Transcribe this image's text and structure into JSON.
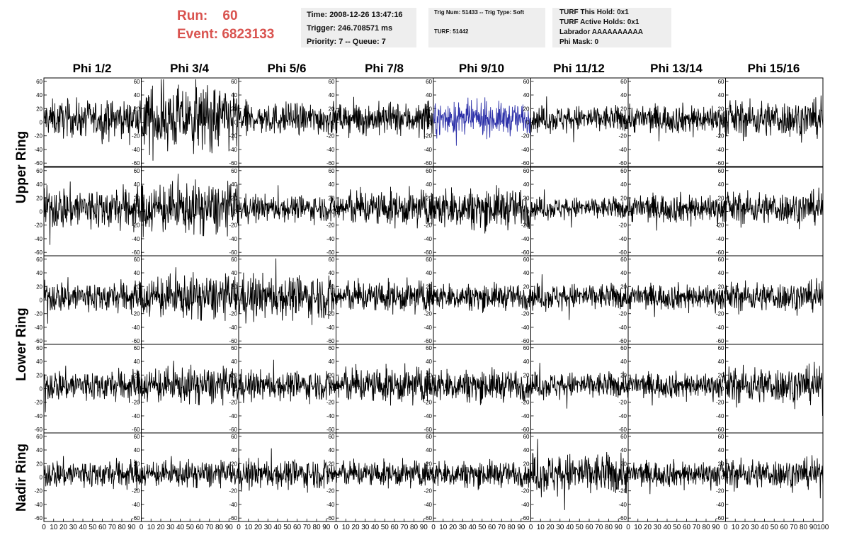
{
  "header": {
    "run_label": "Run:",
    "run_value": "60",
    "event_label": "Event:",
    "event_value": "6823133"
  },
  "info_time": {
    "line1": "Time: 2008-12-26 13:47:16",
    "line2": "Trigger: 246.708571 ms",
    "line3": "Priority: 7 -- Queue: 7"
  },
  "info_trig": {
    "line1": "Trig Num: 51433 -- Trig Type: Soft",
    "line2": "TURF: 51442"
  },
  "info_turf": {
    "line1": "TURF This Hold: 0x1",
    "line2": "TURF Active Holds: 0x1",
    "line3": "Labrador AAAAAAAAAA",
    "line4": "Phi Mask: 0"
  },
  "colors": {
    "trace": "#000000",
    "highlight": "#2b2fa8",
    "header_red": "#d9534f"
  },
  "chart_data": {
    "type": "line",
    "columns": [
      "Phi 1/2",
      "Phi 3/4",
      "Phi 5/6",
      "Phi 7/8",
      "Phi 9/10",
      "Phi 11/12",
      "Phi 13/14",
      "Phi 15/16"
    ],
    "rows": [
      "Upper Ring",
      "Upper Ring",
      "Lower Ring",
      "Lower Ring",
      "Nadir Ring"
    ],
    "row_labels": [
      {
        "label": "Upper Ring",
        "span": [
          0,
          1
        ]
      },
      {
        "label": "Lower Ring",
        "span": [
          2,
          3
        ]
      },
      {
        "label": "Nadir Ring",
        "span": [
          4,
          4
        ]
      }
    ],
    "ylim": [
      -65,
      65
    ],
    "yticks": [
      -60,
      -40,
      -20,
      0,
      20,
      40,
      60
    ],
    "xlim": [
      0,
      100
    ],
    "xticks": [
      0,
      10,
      20,
      30,
      40,
      50,
      60,
      70,
      80,
      90,
      100
    ],
    "highlight_panel": {
      "row": 0,
      "col": 4
    },
    "amplitudes": [
      [
        25,
        45,
        22,
        22,
        22,
        18,
        20,
        25
      ],
      [
        30,
        35,
        18,
        25,
        28,
        15,
        20,
        22
      ],
      [
        22,
        30,
        30,
        22,
        18,
        18,
        18,
        20
      ],
      [
        22,
        25,
        20,
        25,
        22,
        18,
        18,
        25
      ],
      [
        20,
        18,
        20,
        18,
        18,
        28,
        18,
        20
      ]
    ]
  }
}
